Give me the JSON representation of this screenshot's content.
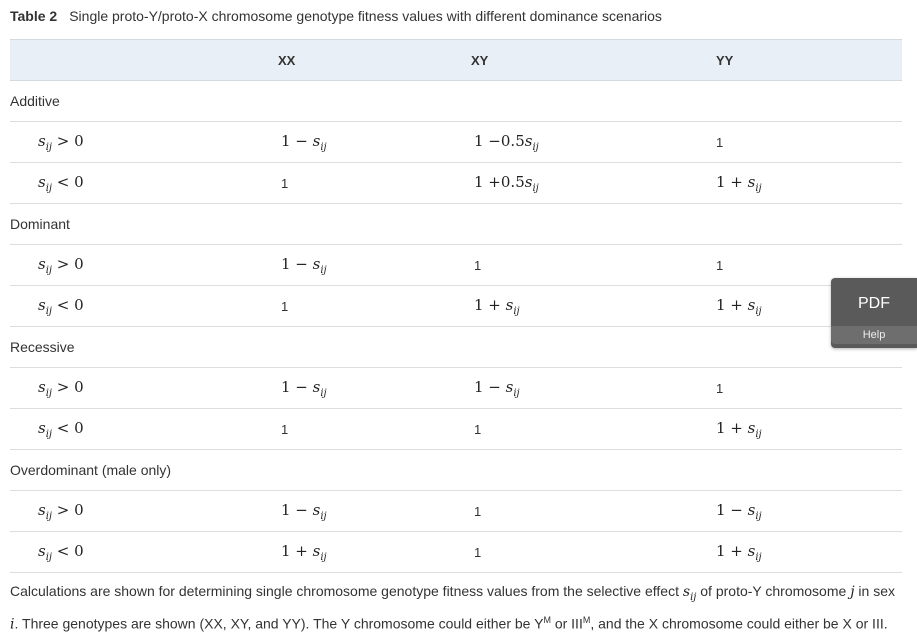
{
  "caption": {
    "table_number": "Table 2",
    "title": "Single proto-Y/proto-X chromosome genotype fitness values with different dominance scenarios"
  },
  "table": {
    "headers": [
      "",
      "XX",
      "XY",
      "YY"
    ],
    "sections": [
      {
        "name": "Additive",
        "rows": [
          {
            "condition": "s_ij > 0",
            "xx": "1 − s_ij",
            "xy": "1 −0.5s_ij",
            "yy": "1"
          },
          {
            "condition": "s_ij < 0",
            "xx": "1",
            "xy": "1 +0.5s_ij",
            "yy": "1 + s_ij"
          }
        ]
      },
      {
        "name": "Dominant",
        "rows": [
          {
            "condition": "s_ij > 0",
            "xx": "1 − s_ij",
            "xy": "1",
            "yy": "1"
          },
          {
            "condition": "s_ij < 0",
            "xx": "1",
            "xy": "1 + s_ij",
            "yy": "1 + s_ij"
          }
        ]
      },
      {
        "name": "Recessive",
        "rows": [
          {
            "condition": "s_ij > 0",
            "xx": "1 − s_ij",
            "xy": "1 − s_ij",
            "yy": "1"
          },
          {
            "condition": "s_ij < 0",
            "xx": "1",
            "xy": "1",
            "yy": "1 + s_ij"
          }
        ]
      },
      {
        "name": "Overdominant (male only)",
        "rows": [
          {
            "condition": "s_ij > 0",
            "xx": "1 − s_ij",
            "xy": "1",
            "yy": "1 − s_ij"
          },
          {
            "condition": "s_ij < 0",
            "xx": "1 + s_ij",
            "xy": "1",
            "yy": "1 + s_ij"
          }
        ]
      }
    ]
  },
  "footnote": {
    "part1": "Calculations are shown for determining single chromosome genotype fitness values from the selective effect ",
    "symbol_s": "s",
    "symbol_sub": "ij",
    "part2": " of proto-Y chromosome ",
    "symbol_j": "j",
    "part3": " in sex",
    "symbol_i": "i",
    "part4": ". Three genotypes are shown (XX, XY, and YY). The Y chromosome could either be Y",
    "sup_m1": "M",
    "part5": " or III",
    "sup_m2": "M",
    "part6": ", and the X chromosome could either be X or III."
  },
  "widget": {
    "pdf_label": "PDF",
    "help_label": "Help"
  }
}
